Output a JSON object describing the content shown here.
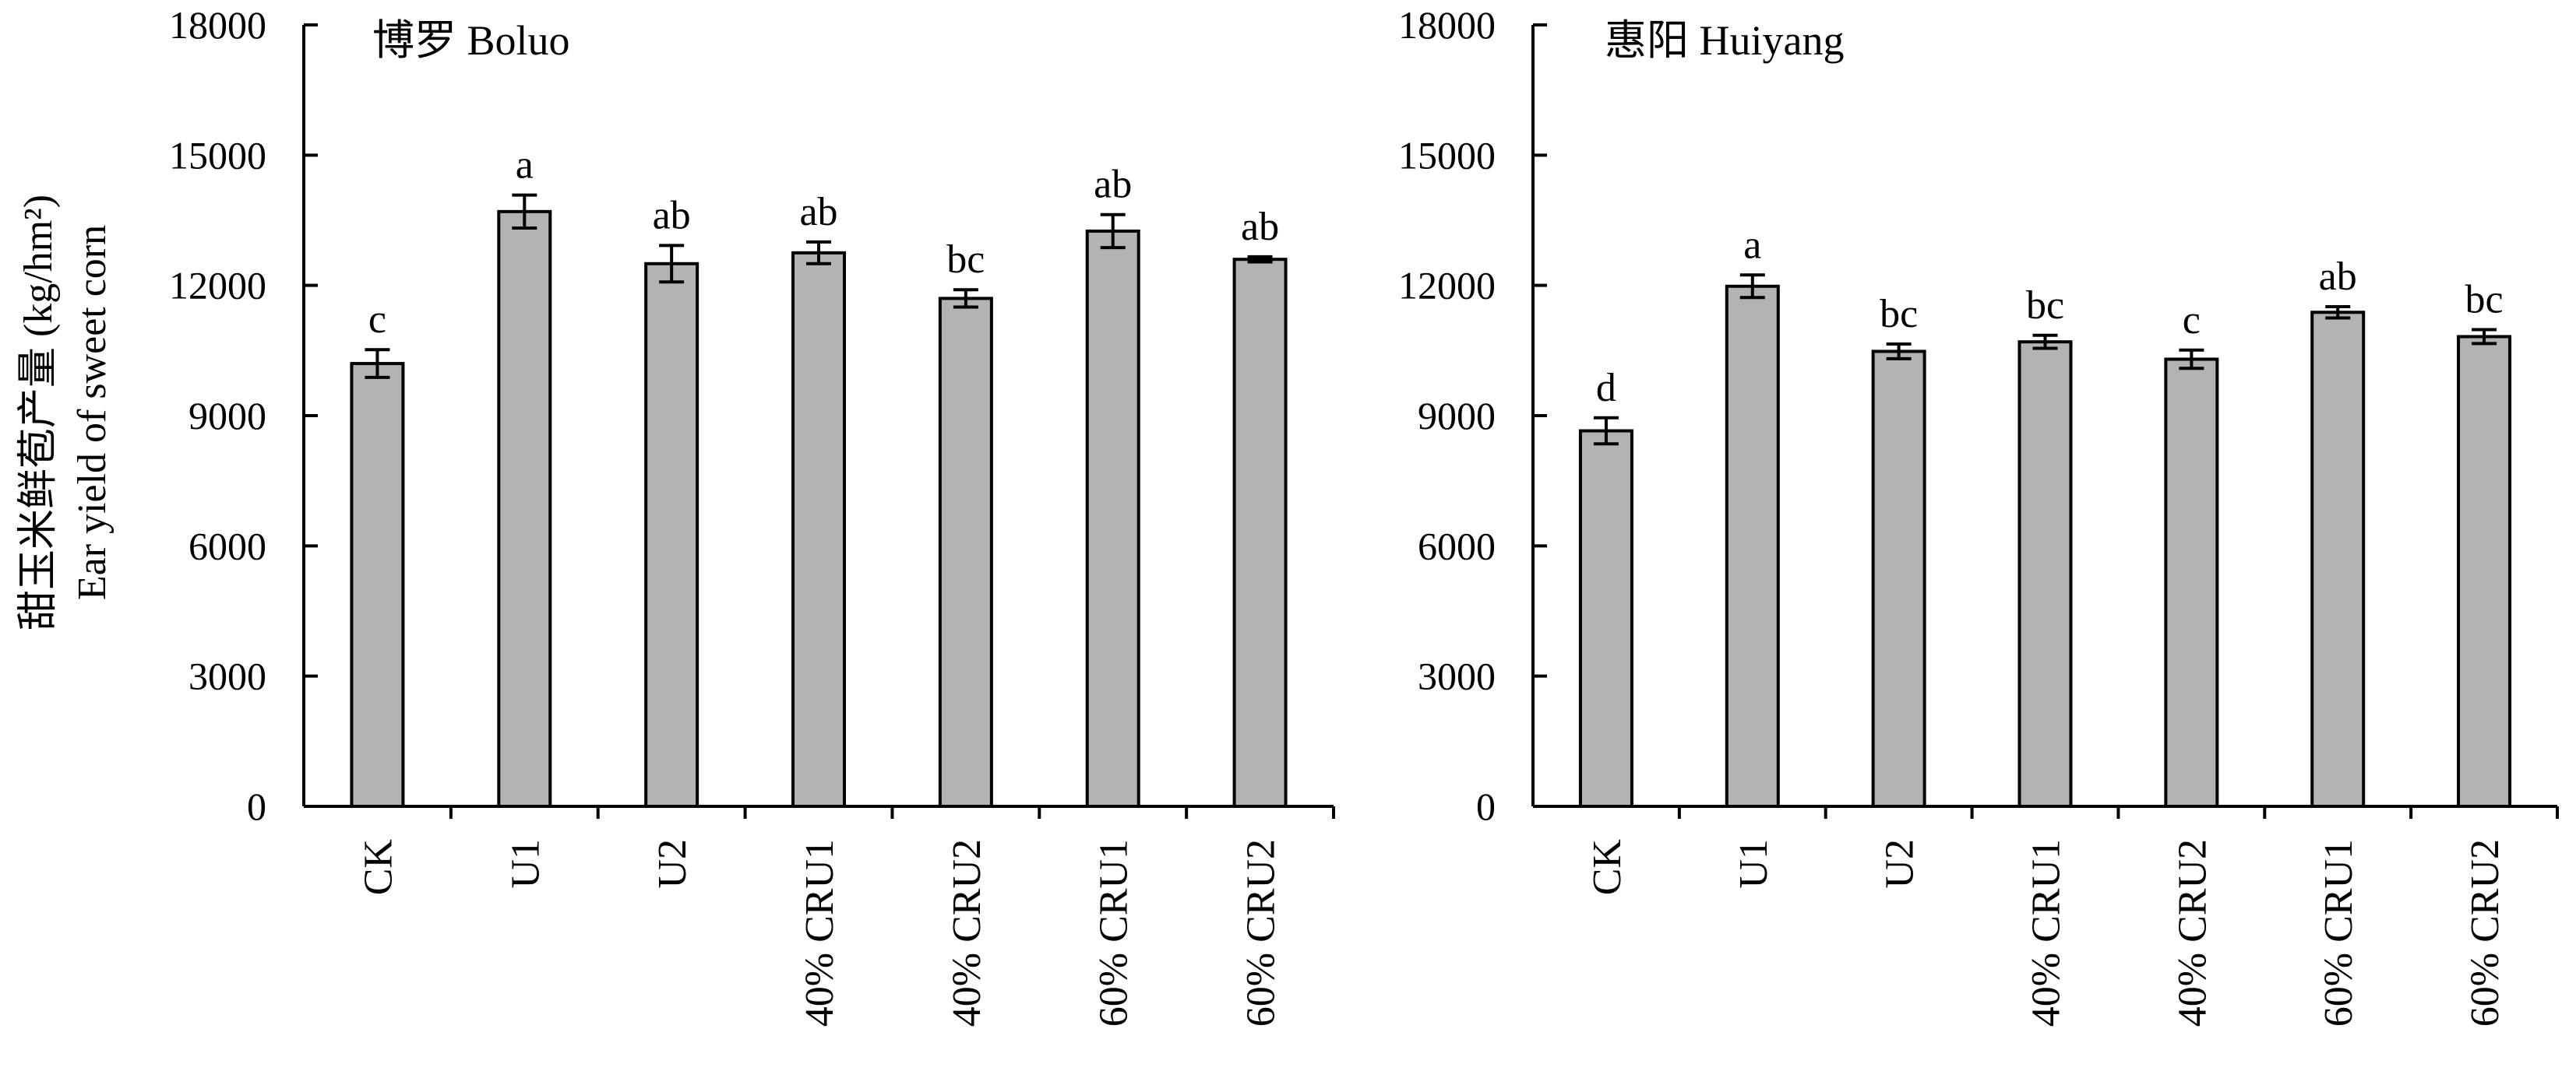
{
  "ylabel": {
    "line1": "甜玉米鲜苞产量 (kg/hm²)",
    "line2": "Ear yield of sweet corn"
  },
  "style": {
    "bar_fill": "#b3b3b3",
    "bar_stroke": "#000000",
    "axis_color": "#000000"
  },
  "chart_data": [
    {
      "type": "bar",
      "title": "博罗 Boluo",
      "categories": [
        "CK",
        "U1",
        "U2",
        "40% CRU1",
        "40% CRU2",
        "60% CRU1",
        "60% CRU2"
      ],
      "values": [
        10200,
        13700,
        12500,
        12750,
        11700,
        13250,
        12600
      ],
      "errors": [
        320,
        380,
        420,
        250,
        200,
        380,
        60
      ],
      "significance": [
        "c",
        "a",
        "ab",
        "ab",
        "bc",
        "ab",
        "ab"
      ],
      "ylim": [
        0,
        18000
      ],
      "yticks": [
        "0",
        "3000",
        "6000",
        "9000",
        "12000",
        "15000",
        "18000"
      ],
      "xlabel": "",
      "ylabel": "",
      "grid": false,
      "legend": "none"
    },
    {
      "type": "bar",
      "title": "惠阳 Huiyang",
      "categories": [
        "CK",
        "U1",
        "U2",
        "40% CRU1",
        "40% CRU2",
        "60% CRU1",
        "60% CRU2"
      ],
      "values": [
        8650,
        11980,
        10480,
        10700,
        10300,
        11380,
        10820
      ],
      "errors": [
        300,
        260,
        170,
        150,
        210,
        130,
        160
      ],
      "significance": [
        "d",
        "a",
        "bc",
        "bc",
        "c",
        "ab",
        "bc"
      ],
      "ylim": [
        0,
        18000
      ],
      "yticks": [
        "0",
        "3000",
        "6000",
        "9000",
        "12000",
        "15000",
        "18000"
      ],
      "xlabel": "",
      "ylabel": "",
      "grid": false,
      "legend": "none"
    }
  ]
}
